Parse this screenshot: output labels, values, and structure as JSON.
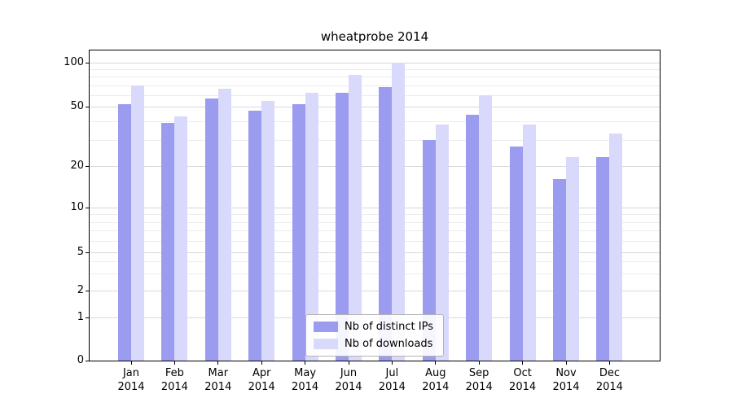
{
  "title": "wheatprobe 2014",
  "chart_data": {
    "type": "bar",
    "title": "wheatprobe 2014",
    "categories": [
      "Jan 2014",
      "Feb 2014",
      "Mar 2014",
      "Apr 2014",
      "May 2014",
      "Jun 2014",
      "Jul 2014",
      "Aug 2014",
      "Sep 2014",
      "Oct 2014",
      "Nov 2014",
      "Dec 2014"
    ],
    "series": [
      {
        "name": "Nb of distinct IPs",
        "color": "#9b9bef",
        "values": [
          52,
          39,
          57,
          47,
          52,
          62,
          68,
          30,
          44,
          27,
          16,
          23
        ]
      },
      {
        "name": "Nb of downloads",
        "color": "#d9d9fb",
        "values": [
          70,
          43,
          66,
          55,
          62,
          83,
          100,
          38,
          60,
          38,
          23,
          33
        ]
      }
    ],
    "xlabel": "",
    "ylabel": "",
    "yscale": "symlog",
    "ylim": [
      0,
      110
    ],
    "yticks": [
      0,
      1,
      2,
      5,
      10,
      20,
      50,
      100
    ],
    "yticks_minor": [
      3,
      4,
      6,
      7,
      8,
      9,
      30,
      40,
      60,
      70,
      80,
      90
    ],
    "grid": true,
    "legend_position": "lower center"
  },
  "colors": {
    "bar_distinct_ips": "#9b9bef",
    "bar_downloads": "#d9d9fb",
    "axis": "#000000",
    "grid_major": "#d9d9d9",
    "grid_minor": "#ececec",
    "background": "#ffffff",
    "legend_border": "#b3b3b3"
  }
}
